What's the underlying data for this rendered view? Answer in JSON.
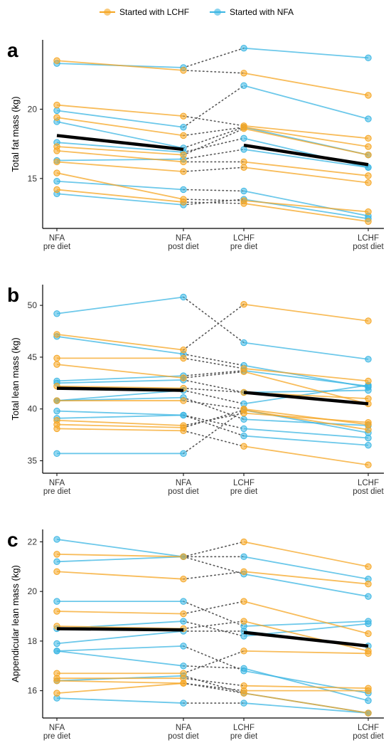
{
  "legend": {
    "items": [
      {
        "label": "Started with LCHF",
        "color": "#F5A623"
      },
      {
        "label": "Started with NFA",
        "color": "#3BB6E3"
      }
    ]
  },
  "chart_data": [
    {
      "panel_label": "a",
      "type": "line",
      "ylabel": "Total fat mass (kg)",
      "categories": [
        "NFA\npre diet",
        "NFA\npost diet",
        "LCHF\npre diet",
        "LCHF\npost diet"
      ],
      "yticks": [
        15,
        20
      ],
      "ylim": [
        11.4,
        25
      ],
      "mean": [
        18.1,
        17.1,
        17.4,
        16.0
      ],
      "series": [
        {
          "group": "NFA",
          "values": [
            23.3,
            23.0,
            24.4,
            23.7
          ]
        },
        {
          "group": "NFA",
          "values": [
            19.9,
            18.7,
            21.7,
            19.3
          ]
        },
        {
          "group": "NFA",
          "values": [
            19.1,
            17.2,
            18.7,
            16.7
          ]
        },
        {
          "group": "NFA",
          "values": [
            17.6,
            16.9,
            17.9,
            15.8
          ]
        },
        {
          "group": "NFA",
          "values": [
            16.3,
            16.4,
            17.1,
            15.8
          ]
        },
        {
          "group": "NFA",
          "values": [
            14.8,
            14.2,
            14.1,
            12.3
          ]
        },
        {
          "group": "NFA",
          "values": [
            13.9,
            13.1,
            13.5,
            12.1
          ]
        },
        {
          "group": "LCHF",
          "values": [
            23.5,
            22.8,
            22.6,
            21.0
          ]
        },
        {
          "group": "LCHF",
          "values": [
            20.3,
            19.5,
            18.8,
            17.9
          ]
        },
        {
          "group": "LCHF",
          "values": [
            19.4,
            18.1,
            18.7,
            17.3
          ]
        },
        {
          "group": "LCHF",
          "values": [
            17.3,
            16.7,
            18.6,
            16.7
          ]
        },
        {
          "group": "LCHF",
          "values": [
            17.0,
            16.2,
            16.2,
            15.2
          ]
        },
        {
          "group": "LCHF",
          "values": [
            16.2,
            15.5,
            15.8,
            14.7
          ]
        },
        {
          "group": "LCHF",
          "values": [
            15.4,
            13.5,
            13.4,
            12.6
          ]
        },
        {
          "group": "LCHF",
          "values": [
            14.2,
            13.3,
            13.2,
            11.9
          ]
        }
      ]
    },
    {
      "panel_label": "b",
      "type": "line",
      "ylabel": "Total lean mass (kg)",
      "categories": [
        "NFA\npre diet",
        "NFA\npost diet",
        "LCHF\npre diet",
        "LCHF\npost diet"
      ],
      "yticks": [
        35,
        40,
        45,
        50
      ],
      "ylim": [
        33.8,
        52
      ],
      "mean": [
        42.0,
        41.8,
        41.6,
        40.5
      ],
      "series": [
        {
          "group": "NFA",
          "values": [
            49.2,
            50.8,
            46.4,
            44.8
          ]
        },
        {
          "group": "NFA",
          "values": [
            47.0,
            45.3,
            44.2,
            42.1
          ]
        },
        {
          "group": "NFA",
          "values": [
            42.7,
            43.2,
            43.7,
            42.2
          ]
        },
        {
          "group": "NFA",
          "values": [
            42.5,
            42.8,
            41.6,
            41.8
          ]
        },
        {
          "group": "NFA",
          "values": [
            40.8,
            41.8,
            40.5,
            42.3
          ]
        },
        {
          "group": "NFA",
          "values": [
            40.8,
            41.1,
            39.0,
            38.4
          ]
        },
        {
          "group": "NFA",
          "values": [
            39.8,
            39.4,
            38.1,
            37.2
          ]
        },
        {
          "group": "NFA",
          "values": [
            39.1,
            39.4,
            37.4,
            36.5
          ]
        },
        {
          "group": "NFA",
          "values": [
            35.7,
            35.7,
            39.9,
            37.7
          ]
        },
        {
          "group": "LCHF",
          "values": [
            47.2,
            45.7,
            50.1,
            48.5
          ]
        },
        {
          "group": "LCHF",
          "values": [
            44.9,
            44.9,
            43.9,
            42.7
          ]
        },
        {
          "group": "LCHF",
          "values": [
            44.3,
            43.0,
            43.6,
            40.5
          ]
        },
        {
          "group": "LCHF",
          "values": [
            42.2,
            42.0,
            41.6,
            41.0
          ]
        },
        {
          "group": "LCHF",
          "values": [
            40.8,
            40.8,
            40.0,
            38.5
          ]
        },
        {
          "group": "LCHF",
          "values": [
            38.9,
            38.4,
            39.6,
            38.7
          ]
        },
        {
          "group": "LCHF",
          "values": [
            38.5,
            38.2,
            39.9,
            38.0
          ]
        },
        {
          "group": "LCHF",
          "values": [
            38.1,
            37.9,
            36.4,
            34.6
          ]
        }
      ]
    },
    {
      "panel_label": "c",
      "type": "line",
      "ylabel": "Appendicular lean mass (kg)",
      "categories": [
        "NFA\npre diet",
        "NFA\npost diet",
        "LCHF\npre diet",
        "LCHF\npost diet"
      ],
      "yticks": [
        16,
        18,
        20,
        22
      ],
      "ylim": [
        14.9,
        22.5
      ],
      "mean": [
        18.5,
        18.45,
        18.35,
        17.8
      ],
      "series": [
        {
          "group": "NFA",
          "values": [
            22.1,
            21.4,
            21.4,
            20.5
          ]
        },
        {
          "group": "NFA",
          "values": [
            21.2,
            21.4,
            20.7,
            19.8
          ]
        },
        {
          "group": "NFA",
          "values": [
            19.6,
            19.6,
            18.6,
            18.8
          ]
        },
        {
          "group": "NFA",
          "values": [
            18.5,
            18.8,
            18.2,
            18.7
          ]
        },
        {
          "group": "NFA",
          "values": [
            17.9,
            18.4,
            18.4,
            17.8
          ]
        },
        {
          "group": "NFA",
          "values": [
            17.6,
            17.8,
            16.8,
            15.9
          ]
        },
        {
          "group": "NFA",
          "values": [
            17.6,
            17.0,
            16.9,
            15.6
          ]
        },
        {
          "group": "NFA",
          "values": [
            16.4,
            16.6,
            15.9,
            15.1
          ]
        },
        {
          "group": "NFA",
          "values": [
            15.7,
            15.5,
            15.5,
            15.1
          ]
        },
        {
          "group": "LCHF",
          "values": [
            21.5,
            21.4,
            22.0,
            21.0
          ]
        },
        {
          "group": "LCHF",
          "values": [
            20.8,
            20.5,
            20.8,
            20.3
          ]
        },
        {
          "group": "LCHF",
          "values": [
            19.2,
            19.1,
            19.6,
            18.3
          ]
        },
        {
          "group": "LCHF",
          "values": [
            18.6,
            18.5,
            18.8,
            17.6
          ]
        },
        {
          "group": "LCHF",
          "values": [
            16.7,
            16.7,
            17.6,
            17.5
          ]
        },
        {
          "group": "LCHF",
          "values": [
            16.5,
            16.5,
            16.2,
            16.1
          ]
        },
        {
          "group": "LCHF",
          "values": [
            15.9,
            16.3,
            16.0,
            16.0
          ]
        },
        {
          "group": "LCHF",
          "values": [
            16.4,
            16.3,
            15.9,
            15.1
          ]
        }
      ]
    }
  ]
}
